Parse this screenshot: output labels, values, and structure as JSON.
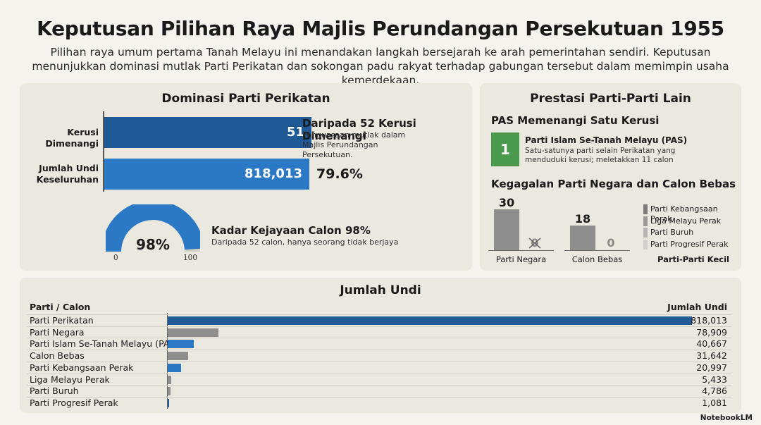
{
  "title": "Keputusan Pilihan Raya Majlis Perundangan Persekutuan 1955",
  "subtitle": "Pilihan raya umum pertama Tanah Melayu ini menandakan langkah bersejarah ke arah pemerintahan sendiri. Keputusan menunjukkan dominasi mutlak Parti Perikatan dan sokongan padu rakyat terhadap gabungan tersebut dalam memimpin usaha kemerdekaan.",
  "left": {
    "title": "Dominasi Parti Perikatan",
    "row1_label": "Kerusi Dimenangi",
    "row1_value": "51",
    "row1_fraction": 0.981,
    "row1_note_head": "Daripada 52 Kerusi Dimenangi",
    "row1_note_sub": "Penguasaan mutlak dalam Majlis Perundangan Persekutuan.",
    "row2_label": "Jumlah Undi Keseluruhan",
    "row2_value": "818,013",
    "row2_fraction": 0.796,
    "row2_pct": "79.6%",
    "gauge_value": "98%",
    "gauge_fraction": 0.98,
    "gauge_min": "0",
    "gauge_max": "100",
    "gauge_head": "Kadar Kejayaan Calon 98%",
    "gauge_sub": "Daripada 52 calon, hanya seorang tidak berjaya"
  },
  "right": {
    "title": "Prestasi Parti-Parti Lain",
    "pas_head": "PAS Memenangi Satu Kerusi",
    "pas_value": "1",
    "pas_name": "Parti Islam Se-Tanah Melayu (PAS)",
    "pas_desc": "Satu-satunya parti selain Perikatan yang menduduki kerusi; meletakkan 11 calon",
    "fail_head": "Kegagalan Parti Negara dan Calon Bebas",
    "groups": [
      {
        "label": "Parti Negara",
        "contested": "30",
        "won": "0"
      },
      {
        "label": "Calon Bebas",
        "contested": "18",
        "won": "0"
      }
    ],
    "legend": [
      "Parti Kebangsaan Perak",
      "Liga Melayu Perak",
      "Parti Buruh",
      "Parti Progresif Perak"
    ],
    "legend_colors": [
      "#7a7a7a",
      "#9a9a9a",
      "#b5b5b5",
      "#cfcfcf"
    ],
    "legend_title": "Parti-Parti Kecil"
  },
  "chart_data": {
    "type": "bar",
    "title": "Jumlah Undi",
    "col_party": "Parti / Calon",
    "col_votes": "Jumlah Undi",
    "categories": [
      "Parti Perikatan",
      "Parti Negara",
      "Parti Islam Se-Tanah Melayu (PAS)",
      "Calon Bebas",
      "Parti Kebangsaan Perak",
      "Liga Melayu Perak",
      "Parti Buruh",
      "Parti Progresif Perak"
    ],
    "values": [
      818013,
      78909,
      40667,
      31642,
      20997,
      5433,
      4786,
      1081
    ],
    "labels": [
      "818,013",
      "78,909",
      "40,667",
      "31,642",
      "20,997",
      "5,433",
      "4,786",
      "1,081"
    ],
    "colors": [
      "#1f5a96",
      "#8e8e8e",
      "#2b79c4",
      "#8e8e8e",
      "#2b79c4",
      "#8e8e8e",
      "#8e8e8e",
      "#1f5a96"
    ]
  },
  "brand": "NotebookLM"
}
